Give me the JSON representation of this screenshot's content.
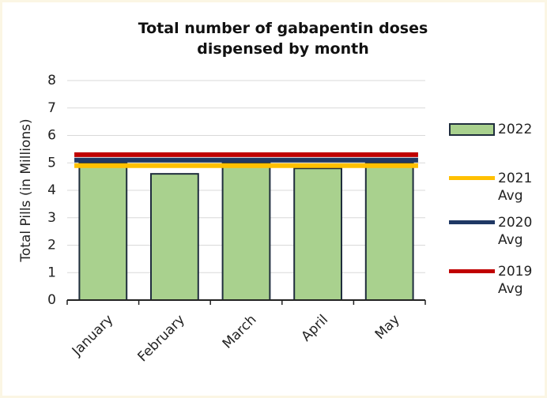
{
  "chart_data": {
    "type": "bar",
    "title": "Total number of gabapentin doses dispensed by month",
    "y_label": "Total Pills (in Millions)",
    "categories": [
      "January",
      "February",
      "March",
      "April",
      "May"
    ],
    "series": [
      {
        "name": "2022",
        "type": "bar",
        "color": "#a9d18e",
        "values": [
          5.0,
          4.6,
          5.0,
          4.8,
          5.0
        ]
      },
      {
        "name": "2021 Avg",
        "type": "line",
        "color": "#ffc000",
        "values": [
          4.9,
          4.9,
          4.9,
          4.9,
          4.9
        ]
      },
      {
        "name": "2020 Avg",
        "type": "line",
        "color": "#1f3864",
        "values": [
          5.1,
          5.1,
          5.1,
          5.1,
          5.1
        ]
      },
      {
        "name": "2019 Avg",
        "type": "line",
        "color": "#c00000",
        "values": [
          5.3,
          5.3,
          5.3,
          5.3,
          5.3
        ]
      }
    ],
    "ylim": [
      0,
      8
    ],
    "yticks": [
      0,
      1,
      2,
      3,
      4,
      5,
      6,
      7,
      8
    ],
    "grid": true
  }
}
